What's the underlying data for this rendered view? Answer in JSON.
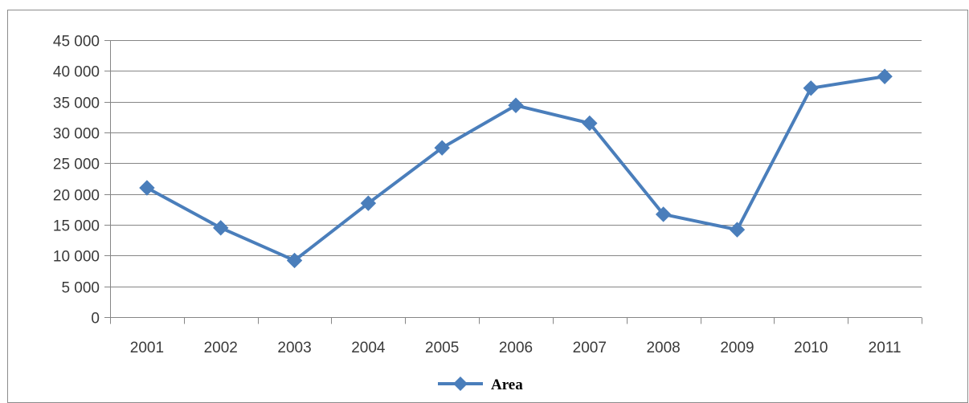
{
  "chart_data": {
    "type": "line",
    "categories": [
      "2001",
      "2002",
      "2003",
      "2004",
      "2005",
      "2006",
      "2007",
      "2008",
      "2009",
      "2010",
      "2011"
    ],
    "series": [
      {
        "name": "Area",
        "values": [
          21000,
          14500,
          9200,
          18500,
          27500,
          34400,
          31500,
          16700,
          14200,
          37200,
          39100
        ]
      }
    ],
    "title": "",
    "xlabel": "",
    "ylabel": "",
    "ylim": [
      0,
      45000
    ],
    "y_ticks": [
      0,
      5000,
      10000,
      15000,
      20000,
      25000,
      30000,
      35000,
      40000,
      45000
    ],
    "y_tick_labels": [
      "0",
      "5 000",
      "10 000",
      "15 000",
      "20 000",
      "25 000",
      "30 000",
      "35 000",
      "40 000",
      "45 000"
    ],
    "grid": true,
    "legend_position": "bottom",
    "series_color": "#4a7ebb",
    "gridline_color": "#868686",
    "marker": "diamond"
  }
}
